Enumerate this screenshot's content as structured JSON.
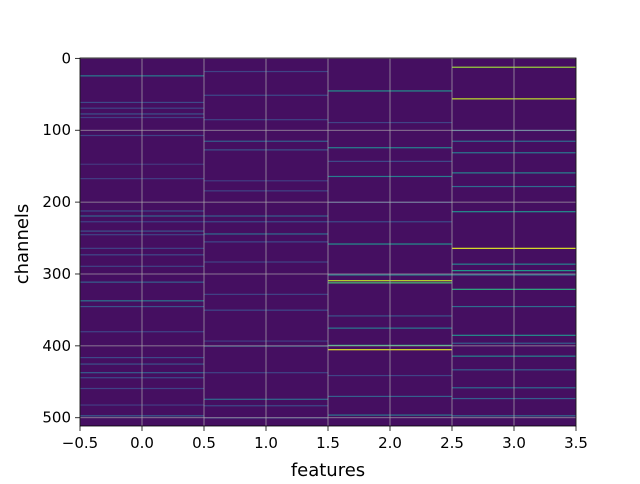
{
  "chart_data": {
    "type": "heatmap",
    "xlabel": "features",
    "ylabel": "channels",
    "xlim": [
      -0.5,
      3.5
    ],
    "ylim": [
      511.5,
      -0.5
    ],
    "y_inverted": true,
    "x_ticks": [
      -0.5,
      0.0,
      0.5,
      1.0,
      1.5,
      2.0,
      2.5,
      3.0,
      3.5
    ],
    "x_tick_labels": [
      "−0.5",
      "0.0",
      "0.5",
      "1.0",
      "1.5",
      "2.0",
      "2.5",
      "3.0",
      "3.5"
    ],
    "y_ticks": [
      0,
      100,
      200,
      300,
      400,
      500
    ],
    "y_tick_labels": [
      "0",
      "100",
      "200",
      "300",
      "400",
      "500"
    ],
    "grid": true,
    "colormap": "viridis",
    "value_range": [
      0,
      1
    ],
    "background_value": 0.04,
    "n_channels": 512,
    "features": [
      0,
      1,
      2,
      3
    ],
    "highlights": [
      {
        "feature": 0,
        "channels": [
          24,
          61,
          69,
          77,
          82,
          107,
          147,
          167,
          212,
          219,
          227,
          240,
          245,
          264,
          273,
          289,
          311,
          337,
          345,
          380,
          416,
          425,
          437,
          444,
          459,
          482,
          497
        ],
        "values": [
          0.42,
          0.22,
          0.2,
          0.25,
          0.18,
          0.2,
          0.16,
          0.18,
          0.22,
          0.32,
          0.2,
          0.25,
          0.2,
          0.2,
          0.22,
          0.2,
          0.3,
          0.4,
          0.25,
          0.2,
          0.22,
          0.25,
          0.3,
          0.22,
          0.2,
          0.18,
          0.3
        ]
      },
      {
        "feature": 1,
        "channels": [
          18,
          51,
          85,
          115,
          127,
          170,
          184,
          219,
          227,
          244,
          255,
          283,
          328,
          350,
          393,
          400,
          437,
          474,
          483,
          500
        ],
        "values": [
          0.2,
          0.22,
          0.2,
          0.3,
          0.25,
          0.18,
          0.2,
          0.3,
          0.22,
          0.35,
          0.22,
          0.2,
          0.2,
          0.22,
          0.18,
          0.3,
          0.2,
          0.35,
          0.22,
          0.2
        ]
      },
      {
        "feature": 2,
        "channels": [
          45,
          89,
          124,
          143,
          164,
          200,
          227,
          258,
          301,
          309,
          312,
          358,
          375,
          399,
          405,
          441,
          470,
          496
        ],
        "values": [
          0.5,
          0.2,
          0.45,
          0.22,
          0.42,
          0.2,
          0.22,
          0.5,
          0.45,
          0.9,
          0.7,
          0.25,
          0.4,
          0.65,
          0.95,
          0.2,
          0.3,
          0.4
        ]
      },
      {
        "feature": 3,
        "channels": [
          12,
          56,
          100,
          115,
          131,
          159,
          178,
          213,
          264,
          286,
          295,
          301,
          321,
          345,
          385,
          396,
          414,
          433,
          458,
          473,
          497
        ],
        "values": [
          0.85,
          0.9,
          0.3,
          0.35,
          0.4,
          0.45,
          0.35,
          0.5,
          0.95,
          0.45,
          0.55,
          0.4,
          0.62,
          0.35,
          0.5,
          0.3,
          0.45,
          0.3,
          0.35,
          0.3,
          0.35
        ]
      }
    ]
  }
}
